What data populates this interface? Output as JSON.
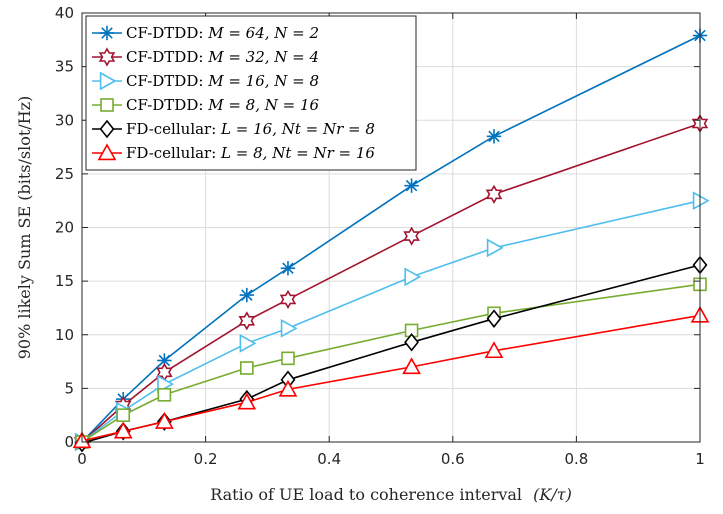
{
  "chart_data": {
    "type": "line",
    "title": "",
    "xlabel": "Ratio of UE load to coherence interval",
    "xlabel_math": "(K/τ)",
    "ylabel": "90% likely Sum SE (bits/slot/Hz)",
    "xlim": [
      0,
      1
    ],
    "ylim": [
      0,
      40
    ],
    "xticks": [
      0,
      0.2,
      0.4,
      0.6,
      0.8,
      1
    ],
    "xtick_labels": [
      "0",
      "0.2",
      "0.4",
      "0.6",
      "0.8",
      "1"
    ],
    "yticks": [
      0,
      5,
      10,
      15,
      20,
      25,
      30,
      35,
      40
    ],
    "ytick_labels": [
      "0",
      "5",
      "10",
      "15",
      "20",
      "25",
      "30",
      "35",
      "40"
    ],
    "grid": true,
    "legend_position": "top-left",
    "x": [
      0,
      0.0667,
      0.1333,
      0.2667,
      0.3333,
      0.5333,
      0.6667,
      1
    ],
    "series": [
      {
        "name": "CF-DTDD: M = 64, N = 2",
        "label_prefix": "CF-DTDD: ",
        "label_math": "M = 64, N = 2",
        "color": "#0072BD",
        "marker": "asterisk",
        "values": [
          0,
          4.0,
          7.6,
          13.7,
          16.2,
          23.9,
          28.5,
          37.9
        ]
      },
      {
        "name": "CF-DTDD: M = 32, N = 4",
        "label_prefix": "CF-DTDD: ",
        "label_math": "M = 32, N = 4",
        "color": "#A2142F",
        "marker": "hexagram",
        "values": [
          0,
          3.4,
          6.5,
          11.3,
          13.3,
          19.2,
          23.1,
          29.7
        ]
      },
      {
        "name": "CF-DTDD: M = 16, N = 8",
        "label_prefix": "CF-DTDD: ",
        "label_math": "M = 16, N = 8",
        "color": "#4DBEEE",
        "marker": "triangle-right",
        "values": [
          0,
          2.9,
          5.4,
          9.2,
          10.6,
          15.4,
          18.1,
          22.5
        ]
      },
      {
        "name": "CF-DTDD: M = 8, N = 16",
        "label_prefix": "CF-DTDD: ",
        "label_math": "M = 8, N = 16",
        "color": "#77AC30",
        "marker": "square",
        "values": [
          0,
          2.5,
          4.4,
          6.9,
          7.8,
          10.4,
          12.0,
          14.7
        ]
      },
      {
        "name": "FD-cellular: L = 16, Nt = Nr = 8",
        "label_prefix": "FD-cellular: ",
        "label_math": "L = 16, Nt = Nr = 8",
        "color": "#000000",
        "marker": "diamond",
        "values": [
          -0.1,
          1.0,
          1.9,
          4.0,
          5.8,
          9.3,
          11.5,
          16.5
        ]
      },
      {
        "name": "FD-cellular: L = 8, Nt = Nr = 16",
        "label_prefix": "FD-cellular: ",
        "label_math": "L = 8, Nt = Nr = 16",
        "color": "#FF0000",
        "marker": "triangle-up",
        "values": [
          0.1,
          1.0,
          1.9,
          3.7,
          4.9,
          7.0,
          8.5,
          11.8
        ]
      }
    ]
  }
}
